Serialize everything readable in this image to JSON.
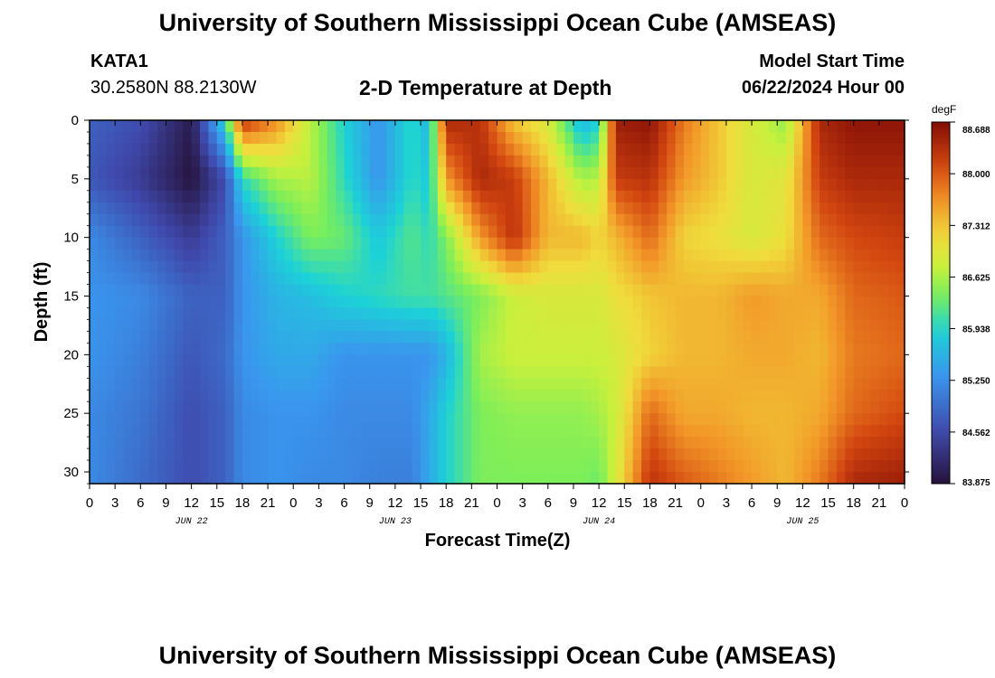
{
  "header": {
    "title": "University of Southern Mississippi Ocean Cube (AMSEAS)",
    "station_id": "KATA1",
    "coordinates": "30.2580N  88.2130W",
    "plot_title": "2-D Temperature at Depth",
    "model_start_label": "Model Start Time",
    "model_start_value": "06/22/2024 Hour 00"
  },
  "footer": {
    "title": "University of Southern Mississippi Ocean Cube (AMSEAS)"
  },
  "chart_data": {
    "type": "heatmap",
    "title": "2-D Temperature at Depth",
    "xlabel": "Forecast Time(Z)",
    "ylabel": "Depth (ft)",
    "units": "degF",
    "x_range_hours": [
      0,
      96
    ],
    "y_range_ft": [
      0,
      31
    ],
    "x_tick_labels": [
      "0",
      "3",
      "6",
      "9",
      "12",
      "15",
      "18",
      "21",
      "0",
      "3",
      "6",
      "9",
      "12",
      "15",
      "18",
      "21",
      "0",
      "3",
      "6",
      "9",
      "12",
      "15",
      "18",
      "21",
      "0",
      "3",
      "6",
      "9",
      "12",
      "15",
      "18",
      "21",
      "0"
    ],
    "day_labels": [
      {
        "label": "JUN 22",
        "hour": 12
      },
      {
        "label": "JUN 23",
        "hour": 36
      },
      {
        "label": "JUN 24",
        "hour": 60
      },
      {
        "label": "JUN 25",
        "hour": 84
      }
    ],
    "y_tick_labels": [
      "0",
      "5",
      "10",
      "15",
      "20",
      "25",
      "30"
    ],
    "y_tick_values": [
      0,
      5,
      10,
      15,
      20,
      25,
      30
    ],
    "colorbar": {
      "min": 83.875,
      "max": 88.688,
      "tick_values": [
        88.688,
        88.0,
        87.312,
        86.625,
        85.938,
        85.25,
        84.562,
        83.875
      ],
      "tick_labels": [
        "88.688",
        "88.000",
        "87.312",
        "86.625",
        "85.938",
        "85.250",
        "84.562",
        "83.875"
      ]
    },
    "depths_ft": [
      0,
      5,
      10,
      15,
      20,
      25,
      31
    ],
    "hours": [
      0,
      6,
      12,
      16,
      18,
      22,
      26,
      30,
      34,
      38,
      40,
      42,
      46,
      50,
      54,
      58,
      60,
      62,
      66,
      70,
      74,
      78,
      82,
      86,
      90,
      96
    ],
    "values_degF": [
      [
        84.8,
        84.6,
        84.0,
        86.0,
        88.3,
        87.7,
        86.7,
        85.9,
        85.3,
        86.0,
        85.6,
        88.4,
        88.3,
        87.3,
        86.9,
        85.6,
        85.9,
        88.5,
        88.6,
        87.8,
        87.3,
        86.9,
        86.5,
        88.4,
        88.6,
        88.6
      ],
      [
        84.7,
        84.4,
        83.9,
        84.6,
        86.0,
        86.6,
        86.7,
        86.0,
        85.3,
        86.0,
        85.8,
        87.6,
        88.4,
        88.2,
        87.4,
        86.6,
        86.7,
        88.2,
        88.3,
        87.6,
        87.3,
        86.9,
        87.0,
        88.2,
        88.4,
        88.4
      ],
      [
        85.2,
        84.8,
        84.4,
        84.8,
        85.3,
        85.9,
        86.4,
        86.3,
        85.8,
        86.2,
        86.0,
        86.4,
        87.6,
        88.3,
        87.4,
        87.4,
        87.2,
        87.4,
        87.9,
        87.2,
        87.1,
        86.9,
        87.1,
        87.9,
        88.1,
        88.2
      ],
      [
        85.3,
        85.2,
        84.8,
        84.8,
        85.3,
        85.6,
        85.7,
        85.9,
        86.0,
        86.1,
        86.1,
        86.2,
        86.4,
        86.8,
        86.9,
        86.9,
        86.9,
        87.1,
        87.3,
        87.4,
        87.4,
        87.6,
        87.5,
        87.5,
        87.9,
        88.0
      ],
      [
        85.3,
        85.1,
        84.7,
        84.9,
        85.3,
        85.5,
        85.5,
        85.3,
        85.3,
        85.3,
        85.3,
        85.6,
        86.6,
        86.8,
        86.8,
        86.8,
        86.8,
        86.9,
        87.2,
        87.4,
        87.4,
        87.5,
        87.5,
        87.4,
        87.8,
        87.9
      ],
      [
        85.2,
        85.0,
        84.6,
        84.8,
        85.2,
        85.3,
        85.3,
        85.2,
        85.2,
        85.2,
        85.5,
        85.9,
        86.4,
        86.5,
        86.5,
        86.5,
        86.6,
        86.8,
        87.9,
        87.5,
        87.5,
        87.4,
        87.4,
        87.5,
        87.9,
        88.1
      ],
      [
        85.2,
        84.9,
        84.6,
        84.8,
        85.2,
        85.3,
        85.2,
        85.2,
        85.1,
        85.1,
        85.5,
        85.9,
        86.4,
        86.4,
        86.4,
        86.4,
        86.3,
        86.9,
        88.3,
        88.0,
        87.8,
        87.6,
        87.4,
        87.8,
        88.4,
        88.5
      ]
    ]
  }
}
